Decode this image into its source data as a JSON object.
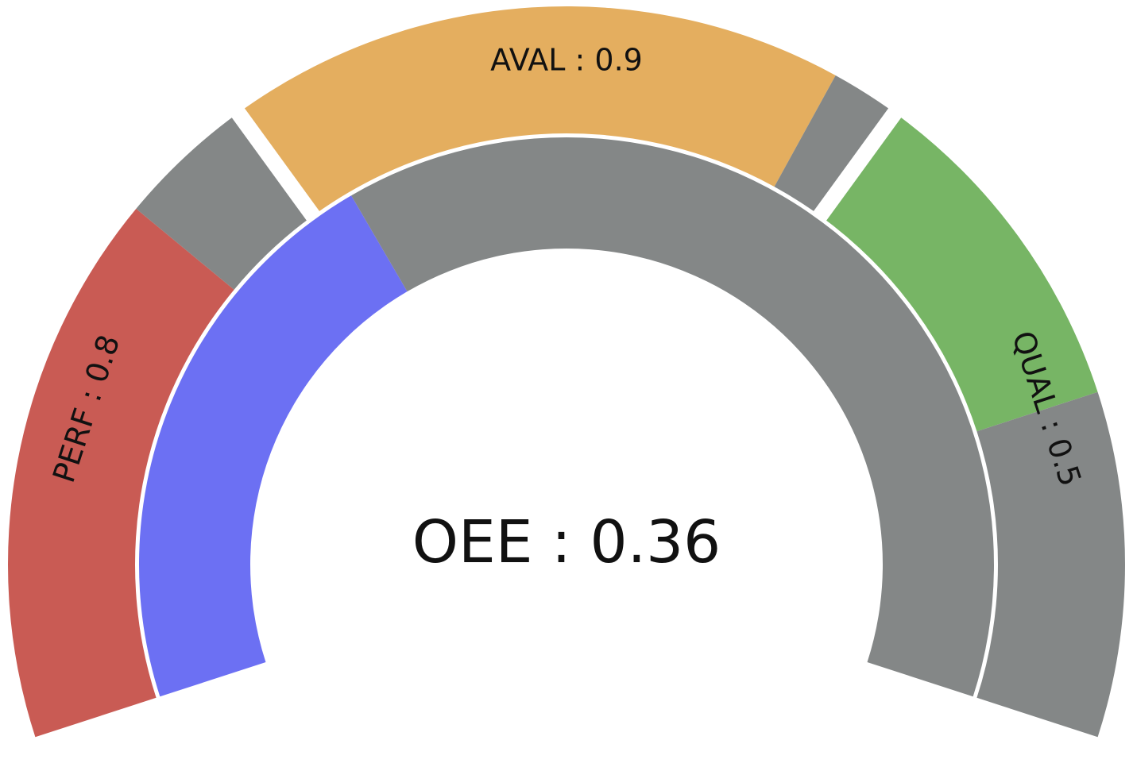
{
  "chart_data": {
    "type": "gauge",
    "outer_segments": [
      {
        "key": "perf",
        "label": "PERF : 0.8",
        "value": 0.8,
        "color": "#c95b54"
      },
      {
        "key": "aval",
        "label": "AVAL : 0.9",
        "value": 0.9,
        "color": "#e4ae5f"
      },
      {
        "key": "qual",
        "label": "QUAL : 0.5",
        "value": 0.5,
        "color": "#77b565"
      }
    ],
    "inner": {
      "label": "OEE : 0.36",
      "value": 0.36,
      "color": "#6c70f3"
    },
    "remainder_color": "#848787"
  }
}
